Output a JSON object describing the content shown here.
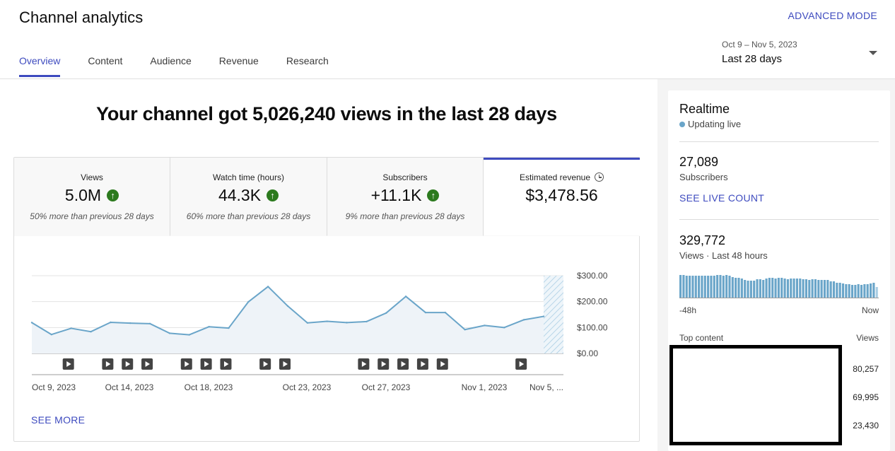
{
  "page_title": "Channel analytics",
  "advanced_mode_label": "ADVANCED MODE",
  "tabs": [
    {
      "label": "Overview",
      "active": true
    },
    {
      "label": "Content",
      "active": false
    },
    {
      "label": "Audience",
      "active": false
    },
    {
      "label": "Revenue",
      "active": false
    },
    {
      "label": "Research",
      "active": false
    }
  ],
  "date_picker": {
    "range": "Oct 9 – Nov 5, 2023",
    "preset": "Last 28 days"
  },
  "headline": "Your channel got 5,026,240 views in the last 28 days",
  "metrics": [
    {
      "label": "Views",
      "value": "5.0M",
      "trend": "up",
      "sub": "50% more than previous 28 days"
    },
    {
      "label": "Watch time (hours)",
      "value": "44.3K",
      "trend": "up",
      "sub": "60% more than previous 28 days"
    },
    {
      "label": "Subscribers",
      "value": "+11.1K",
      "trend": "up",
      "sub": "9% more than previous 28 days"
    },
    {
      "label": "Estimated revenue",
      "value": "$3,478.56",
      "trend": "",
      "sub": ""
    }
  ],
  "colors": {
    "accent": "#3e4bbf",
    "line": "#6aa5c9",
    "trend_up": "#2c7a1e"
  },
  "chart_data": {
    "type": "line",
    "series": [
      {
        "values": [
          119,
          73,
          97,
          84,
          120,
          117,
          115,
          78,
          72,
          103,
          98,
          199,
          258,
          183,
          118,
          124,
          119,
          123,
          156,
          220,
          158,
          158,
          92,
          108,
          100,
          130,
          143
        ]
      }
    ],
    "x_tick_labels": [
      "Oct 9, 2023",
      "Oct 14, 2023",
      "Oct 18, 2023",
      "Oct 23, 2023",
      "Oct 27, 2023",
      "Nov 1, 2023",
      "Nov 5, ..."
    ],
    "y_tick_labels": [
      "$300.00",
      "$200.00",
      "$100.00",
      "$0.00"
    ],
    "ylim": [
      0,
      300
    ],
    "grid": true,
    "partial_last_day": true,
    "video_published_marker_days": [
      2,
      4,
      5,
      6,
      8,
      9,
      10,
      12,
      13,
      17,
      18,
      19,
      20,
      21,
      25
    ],
    "video_icon": "play-icon"
  },
  "see_more_label": "SEE MORE",
  "realtime": {
    "title": "Realtime",
    "status": "Updating live",
    "subscribers_value": "27,089",
    "subscribers_label": "Subscribers",
    "see_live_count_label": "SEE LIVE COUNT",
    "views_value": "329,772",
    "views_label": "Views · Last 48 hours",
    "bar_chart": {
      "type": "bar",
      "values": [
        32,
        32,
        31,
        31,
        31,
        31,
        31,
        31,
        31,
        31,
        31,
        31,
        32,
        32,
        31,
        32,
        31,
        29,
        28,
        28,
        27,
        25,
        24,
        24,
        24,
        26,
        26,
        25,
        27,
        28,
        28,
        27,
        28,
        28,
        27,
        26,
        27,
        27,
        27,
        27,
        26,
        26,
        25,
        26,
        26,
        25,
        25,
        25,
        25,
        23,
        23,
        21,
        21,
        20,
        19,
        19,
        18,
        18,
        19,
        18,
        19,
        19,
        20,
        21,
        15
      ],
      "x_start_label": "-48h",
      "x_end_label": "Now"
    },
    "top_content_label": "Top content",
    "top_content_views_header": "Views",
    "top_content_views": [
      "80,257",
      "69,995",
      "23,430"
    ]
  }
}
